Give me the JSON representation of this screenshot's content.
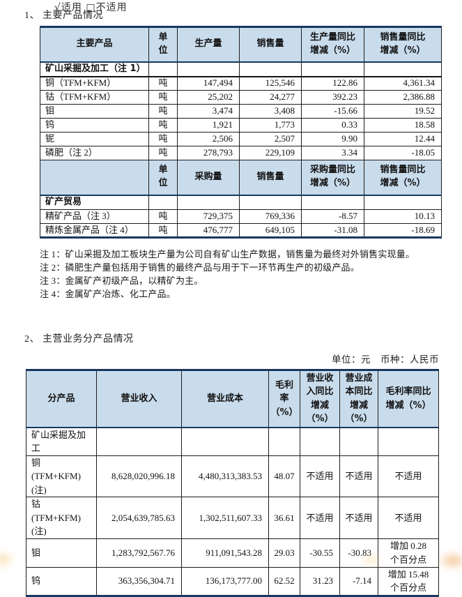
{
  "page": {
    "top_clipped_line": "√适用 □不适用",
    "colors": {
      "header_bg": "#c9dcec",
      "table_border_dark": "#17375d"
    },
    "section1_title": "1、 主要产品情况",
    "section2_title": "2、 主营业务分产品情况",
    "unit_line": "单位：元　币种：人民币",
    "notes": [
      "注 1：矿山采掘及加工板块生产量为公司自有矿山生产数据，销售量为最终对外销售实现量。",
      "注 2：磷肥生产量包括用于销售的最终产品与用于下一环节再生产的初级产品。",
      "注 3：金属矿产初级产品，以精矿为主。",
      "注 4：金属矿产冶炼、化工产品。"
    ]
  },
  "table1": {
    "rows": [
      {
        "k": "hd",
        "c": [
          "主要产品",
          "单\n位",
          "生产量",
          "销售量",
          "生产量同比\n增减（%）",
          "销售量同比\n增减（%）"
        ]
      },
      {
        "k": "sec1",
        "c": [
          "矿山采掘及加工（注 1）",
          "",
          "",
          "",
          "",
          ""
        ]
      },
      {
        "k": "d",
        "c": [
          "铜（TFM+KFM）",
          "吨",
          "147,494",
          "125,546",
          "122.86",
          "4,361.34"
        ]
      },
      {
        "k": "d",
        "c": [
          "钴（TFM+KFM）",
          "吨",
          "25,202",
          "24,277",
          "392.23",
          "2,386.88"
        ]
      },
      {
        "k": "d",
        "c": [
          "钼",
          "吨",
          "3,474",
          "3,408",
          "-15.66",
          "19.52"
        ]
      },
      {
        "k": "d",
        "c": [
          "钨",
          "吨",
          "1,921",
          "1,773",
          "0.33",
          "18.58"
        ]
      },
      {
        "k": "d",
        "c": [
          "铌",
          "吨",
          "2,506",
          "2,507",
          "9.90",
          "12.44"
        ]
      },
      {
        "k": "d",
        "c": [
          "磷肥（注 2）",
          "吨",
          "278,793",
          "229,109",
          "3.34",
          "-18.05"
        ]
      },
      {
        "k": "hd",
        "c": [
          "",
          "单\n位",
          "采购量",
          "销售量",
          "采购量同比\n增减（%）",
          "销售量同比\n增减（%）"
        ]
      },
      {
        "k": "secb",
        "c": [
          "矿产贸易",
          "",
          "",
          "",
          "",
          ""
        ]
      },
      {
        "k": "d",
        "c": [
          "精矿产品（注 3）",
          "吨",
          "729,375",
          "769,336",
          "-8.57",
          "10.13"
        ]
      },
      {
        "k": "d",
        "c": [
          "精炼金属产品（注 4）",
          "吨",
          "476,777",
          "649,105",
          "-31.08",
          "-18.69"
        ]
      }
    ]
  },
  "table2": {
    "rows": [
      {
        "k": "hd2",
        "c": [
          "分产品",
          "营业收入",
          "营业成本",
          "毛利\n率\n（%）",
          "营业收\n入同比\n增减\n（%）",
          "营业成\n本同比\n增减\n（%）",
          "毛利率同比\n增减（%）"
        ]
      },
      {
        "k": "sec2",
        "c": [
          "矿山采掘及加工",
          "",
          "",
          "",
          "",
          "",
          ""
        ]
      },
      {
        "k": "tall",
        "c": [
          "铜\n(TFM+KFM)(注)",
          "8,628,020,996.18",
          "4,480,313,383.53",
          "48.07",
          {
            "t": "不适用",
            "a": "c"
          },
          {
            "t": "不适用",
            "a": "c"
          },
          "不适用"
        ]
      },
      {
        "k": "tall",
        "c": [
          "钴\n(TFM+KFM)(注)",
          "2,054,639,785.63",
          "1,302,511,607.33",
          "36.61",
          {
            "t": "不适用",
            "a": "c"
          },
          {
            "t": "不适用",
            "a": "c"
          },
          "不适用"
        ]
      },
      {
        "k": "mid",
        "c": [
          "钼",
          "1,283,792,567.76",
          "911,091,543.28",
          "29.03",
          "-30.55",
          "-30.83",
          "增加 0.28\n个百分点"
        ]
      },
      {
        "k": "mid",
        "c": [
          "钨",
          "363,356,304.71",
          "136,173,777.00",
          "62.52",
          "31.23",
          "-7.14",
          "增加 15.48\n个百分点"
        ]
      }
    ]
  }
}
